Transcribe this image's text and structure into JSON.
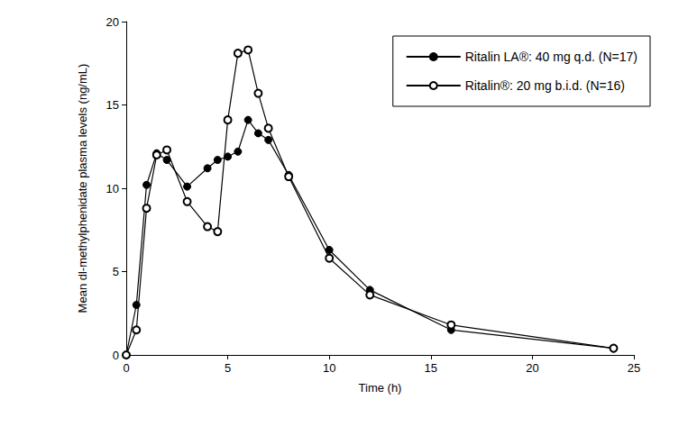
{
  "chart_data": {
    "type": "line",
    "x_label": "Time (h)",
    "y_label": "Mean dl-methylphenidate plasma levels (ng/mL)",
    "x": [
      0,
      0.5,
      1,
      1.5,
      2,
      3,
      4,
      4.5,
      5,
      5.5,
      6,
      6.5,
      7,
      8,
      10,
      12,
      16,
      24
    ],
    "series": [
      {
        "name": "Ritalin LA®: 40 mg q.d. (N=17)",
        "color": "#000000",
        "marker": "filled_circle",
        "line_style": "solid",
        "values": [
          0,
          3.0,
          10.2,
          12.1,
          11.7,
          10.1,
          11.2,
          11.7,
          11.9,
          12.2,
          14.1,
          13.3,
          12.9,
          10.8,
          6.3,
          3.9,
          1.5,
          0.4
        ]
      },
      {
        "name": "Ritalin®: 20 mg b.i.d. (N=16)",
        "color": "#000000",
        "marker": "open_circle",
        "line_style": "solid",
        "values": [
          0,
          1.5,
          8.8,
          12.0,
          12.3,
          9.2,
          7.7,
          7.4,
          14.1,
          18.1,
          18.3,
          15.7,
          13.6,
          10.7,
          5.8,
          3.6,
          1.8,
          0.4
        ]
      }
    ],
    "xlim": [
      0,
      25
    ],
    "xticks": [
      0,
      5,
      10,
      15,
      20,
      25
    ],
    "ylim": [
      0,
      20
    ],
    "yticks": [
      0,
      5,
      10,
      15,
      20
    ],
    "grid": false,
    "legend": "upper right"
  }
}
